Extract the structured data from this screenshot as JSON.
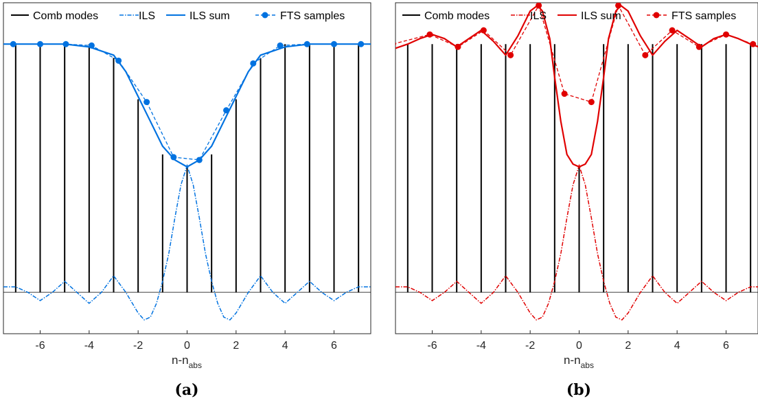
{
  "panels": [
    {
      "caption": "(a)",
      "chart_data": {
        "type": "line",
        "xlabel": "n-n",
        "xlabel_subscript": "abs",
        "xlim": [
          -7.5,
          7.5
        ],
        "ylim": [
          -0.15,
          1.05
        ],
        "xticks": [
          -6,
          -4,
          -2,
          0,
          2,
          4,
          6
        ],
        "xtick_labels": [
          "-6",
          "-4",
          "-2",
          "0",
          "2",
          "4",
          "6"
        ],
        "grid": false,
        "legend_position": "top",
        "legend": [
          "Comb modes",
          "ILS",
          "ILS sum",
          "FTS samples"
        ],
        "color": "#0072E0",
        "comb_mode_phase": 0,
        "comb_modes": {
          "name": "Comb modes",
          "x": [
            -7,
            -6,
            -5,
            -4,
            -3,
            -2,
            -1,
            0,
            1,
            2,
            3,
            4,
            5,
            6,
            7
          ],
          "heights": [
            0.9,
            0.9,
            0.9,
            0.9,
            0.85,
            0.7,
            0.5,
            0.46,
            0.5,
            0.7,
            0.85,
            0.9,
            0.9,
            0.9,
            0.9
          ]
        },
        "ils_sum": {
          "name": "ILS sum",
          "x": [
            -7.5,
            -6,
            -5,
            -4,
            -3,
            -2.5,
            -2,
            -1.5,
            -1,
            -0.5,
            0,
            0.5,
            1,
            1.5,
            2,
            2.5,
            3,
            4,
            5,
            6,
            7.5
          ],
          "y": [
            0.9,
            0.9,
            0.9,
            0.89,
            0.86,
            0.8,
            0.71,
            0.62,
            0.53,
            0.48,
            0.455,
            0.48,
            0.53,
            0.62,
            0.71,
            0.8,
            0.86,
            0.89,
            0.9,
            0.9,
            0.9
          ]
        },
        "fts_samples": {
          "name": "FTS samples",
          "x": [
            -7.1,
            -6,
            -4.95,
            -3.9,
            -2.8,
            -1.65,
            -0.55,
            0.5,
            1.6,
            2.7,
            3.8,
            4.9,
            6,
            7.1
          ],
          "y": [
            0.9,
            0.9,
            0.9,
            0.895,
            0.84,
            0.69,
            0.49,
            0.48,
            0.66,
            0.83,
            0.895,
            0.9,
            0.9,
            0.9
          ]
        },
        "ils": {
          "name": "ILS",
          "x": [
            -7.5,
            -7,
            -6.5,
            -6,
            -5.5,
            -5,
            -4.5,
            -4,
            -3.5,
            -3,
            -2.5,
            -2,
            -1.75,
            -1.5,
            -1.25,
            -1,
            -0.75,
            -0.5,
            -0.25,
            0,
            0.25,
            0.5,
            0.75,
            1,
            1.25,
            1.5,
            1.75,
            2,
            2.5,
            3,
            3.5,
            4,
            4.5,
            5,
            5.5,
            6,
            6.5,
            7,
            7.5
          ],
          "y": [
            0.02,
            0.02,
            0.0,
            -0.03,
            0.0,
            0.04,
            0.0,
            -0.04,
            0.0,
            0.06,
            0.0,
            -0.075,
            -0.1,
            -0.09,
            -0.04,
            0.04,
            0.14,
            0.27,
            0.39,
            0.46,
            0.39,
            0.27,
            0.14,
            0.04,
            -0.04,
            -0.09,
            -0.1,
            -0.075,
            0.0,
            0.06,
            0.0,
            -0.04,
            0.0,
            0.04,
            0.0,
            -0.03,
            0.0,
            0.02,
            0.02
          ]
        }
      }
    },
    {
      "caption": "(b)",
      "chart_data": {
        "type": "line",
        "xlabel": "n-n",
        "xlabel_subscript": "abs",
        "xlim": [
          -7.5,
          7.5
        ],
        "ylim": [
          -0.15,
          1.05
        ],
        "xticks": [
          -6,
          -4,
          -2,
          0,
          2,
          4,
          6
        ],
        "xtick_labels": [
          "-6",
          "-4",
          "-2",
          "0",
          "2",
          "4",
          "6"
        ],
        "grid": false,
        "legend_position": "top",
        "legend": [
          "Comb modes",
          "ILS",
          "ILS sum",
          "FTS samples"
        ],
        "color": "#E00000",
        "comb_mode_phase": 1,
        "comb_modes": {
          "name": "Comb modes",
          "x": [
            -7,
            -6,
            -5,
            -4,
            -3,
            -2,
            -1,
            0,
            1,
            2,
            3,
            4,
            5,
            6,
            7
          ],
          "heights": [
            0.9,
            0.9,
            0.9,
            0.9,
            0.9,
            0.9,
            0.9,
            0.46,
            0.9,
            0.9,
            0.9,
            0.9,
            0.9,
            0.9,
            0.9
          ]
        },
        "ils_sum": {
          "name": "ILS sum",
          "x": [
            -7.5,
            -7,
            -6.5,
            -6,
            -5.5,
            -5,
            -4.5,
            -4,
            -3.5,
            -3,
            -2.5,
            -2,
            -1.7,
            -1.5,
            -1.2,
            -1,
            -0.75,
            -0.5,
            -0.25,
            0,
            0.25,
            0.5,
            0.75,
            1,
            1.2,
            1.5,
            1.7,
            2,
            2.5,
            3,
            3.5,
            4,
            4.5,
            5,
            5.5,
            6,
            6.5,
            7,
            7.5
          ],
          "y": [
            0.885,
            0.9,
            0.92,
            0.935,
            0.92,
            0.89,
            0.92,
            0.95,
            0.91,
            0.86,
            0.93,
            1.02,
            1.04,
            1.02,
            0.92,
            0.78,
            0.62,
            0.5,
            0.465,
            0.455,
            0.465,
            0.5,
            0.62,
            0.78,
            0.92,
            1.02,
            1.04,
            1.02,
            0.93,
            0.86,
            0.91,
            0.95,
            0.92,
            0.89,
            0.92,
            0.935,
            0.92,
            0.9,
            0.885
          ]
        },
        "fts_samples": {
          "name": "FTS samples",
          "x": [
            -7.6,
            -6.1,
            -4.95,
            -3.9,
            -2.8,
            -1.65,
            -0.6,
            0.5,
            1.6,
            2.7,
            3.8,
            4.9,
            6,
            7.1
          ],
          "y": [
            0.9,
            0.935,
            0.89,
            0.95,
            0.86,
            1.04,
            0.72,
            0.69,
            1.04,
            0.86,
            0.95,
            0.89,
            0.935,
            0.9
          ]
        },
        "ils": {
          "name": "ILS",
          "x": [
            -7.5,
            -7,
            -6.5,
            -6,
            -5.5,
            -5,
            -4.5,
            -4,
            -3.5,
            -3,
            -2.5,
            -2,
            -1.75,
            -1.5,
            -1.25,
            -1,
            -0.75,
            -0.5,
            -0.25,
            0,
            0.25,
            0.5,
            0.75,
            1,
            1.25,
            1.5,
            1.75,
            2,
            2.5,
            3,
            3.5,
            4,
            4.5,
            5,
            5.5,
            6,
            6.5,
            7,
            7.5
          ],
          "y": [
            0.02,
            0.02,
            0.0,
            -0.03,
            0.0,
            0.04,
            0.0,
            -0.04,
            0.0,
            0.06,
            0.0,
            -0.075,
            -0.1,
            -0.09,
            -0.04,
            0.04,
            0.14,
            0.27,
            0.39,
            0.46,
            0.39,
            0.27,
            0.14,
            0.04,
            -0.04,
            -0.09,
            -0.1,
            -0.075,
            0.0,
            0.06,
            0.0,
            -0.04,
            0.0,
            0.04,
            0.0,
            -0.03,
            0.0,
            0.02,
            0.02
          ]
        }
      }
    }
  ]
}
